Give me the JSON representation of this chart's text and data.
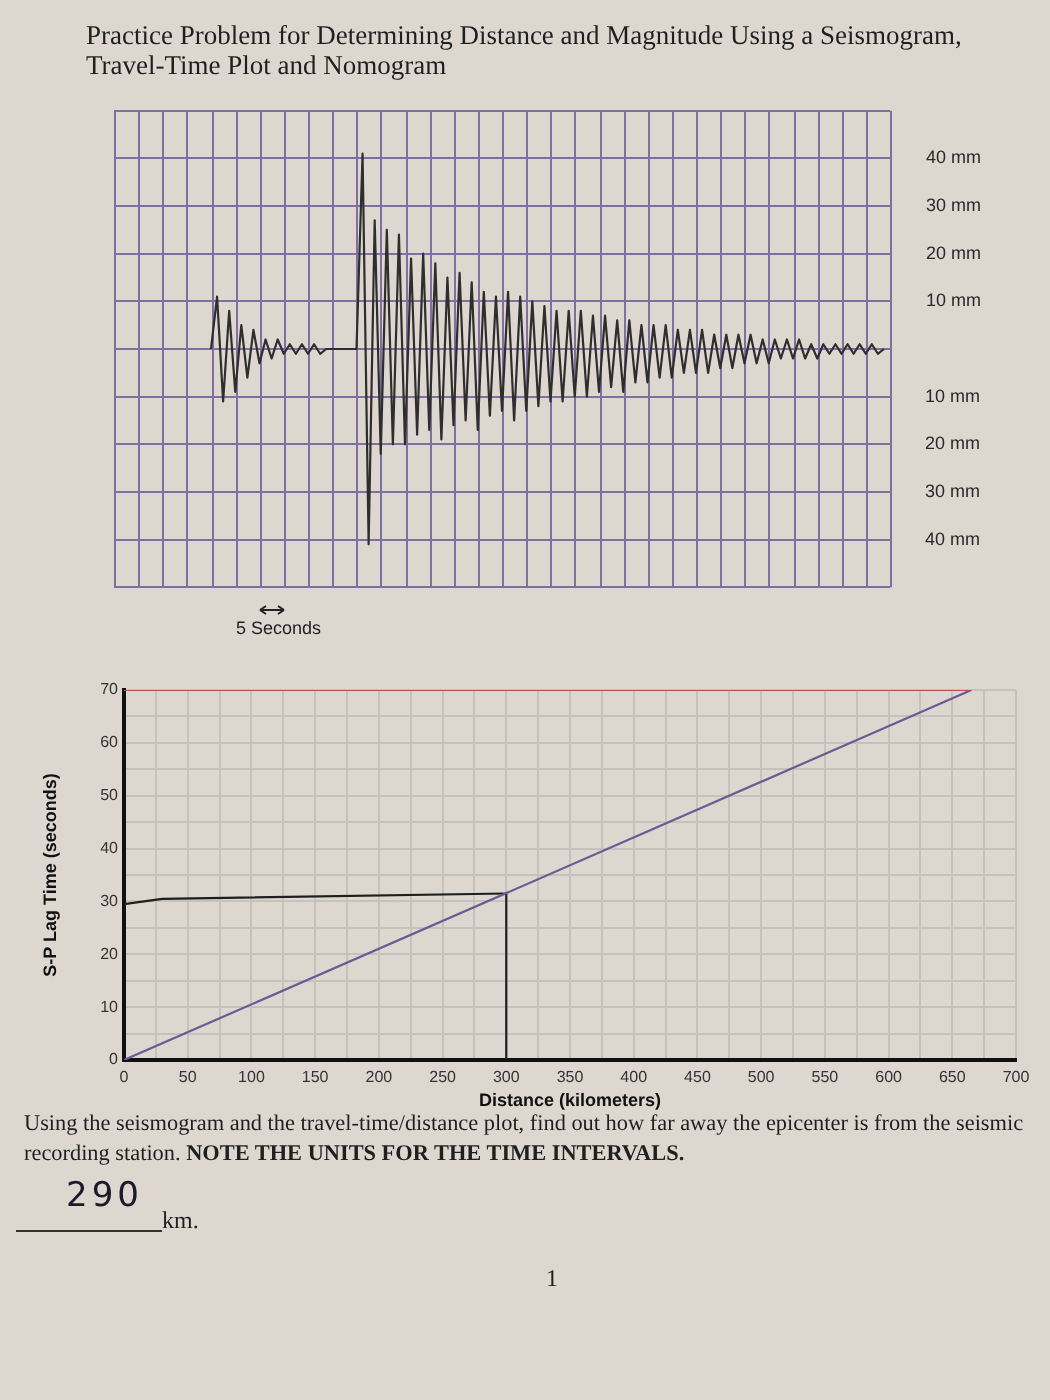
{
  "chart_data": [
    {
      "type": "line",
      "title": "Practice Problem for Determining Distance and Magnitude Using a Seismogram, Travel-Time Plot and Nomogram",
      "categories": [
        null,
        null,
        null,
        null,
        null,
        null,
        null,
        null,
        null,
        null,
        null,
        null,
        null,
        null,
        null,
        null,
        null,
        null,
        null,
        null,
        null,
        null,
        null,
        null,
        null,
        null,
        null,
        null,
        null,
        null,
        null,
        null,
        null,
        null,
        null,
        null,
        null,
        null,
        null,
        null,
        null,
        null,
        null,
        null,
        null,
        null,
        null,
        null,
        null,
        null,
        null,
        null,
        null,
        null,
        null,
        null,
        null,
        null,
        null,
        null,
        null,
        null,
        null,
        null,
        null,
        null,
        null,
        null,
        null,
        null,
        null,
        null,
        null,
        null,
        null,
        null,
        null,
        null,
        null,
        null,
        null,
        null,
        null,
        null,
        null,
        null,
        null,
        null,
        null,
        null,
        null,
        null,
        null,
        null,
        null,
        null,
        null,
        null,
        null,
        null,
        null,
        null,
        null,
        null,
        null,
        null,
        null,
        null,
        null,
        null,
        null,
        null,
        null,
        null,
        null,
        null,
        null,
        null,
        null,
        null,
        null,
        null,
        null,
        null,
        null,
        null,
        null,
        null,
        null
      ],
      "series": [
        {
          "type": "line",
          "color": "#2e2e2e",
          "values": [
            null,
            null,
            null,
            null,
            null,
            null,
            null,
            null,
            null,
            null,
            null,
            null,
            null,
            null,
            null,
            null,
            0,
            11,
            -11,
            8,
            -9,
            5,
            -6,
            4,
            -3,
            2,
            -2,
            2,
            -1,
            1,
            -1,
            1,
            -1,
            1,
            -1,
            0,
            0,
            0,
            0,
            0,
            0,
            41,
            -41,
            27,
            -22,
            25,
            -20,
            24,
            -20,
            19,
            -18,
            20,
            -17,
            18,
            -19,
            15,
            -16,
            16,
            -15,
            14,
            -17,
            12,
            -14,
            11,
            -13,
            12,
            -15,
            11,
            -13,
            10,
            -12,
            9,
            -11,
            8,
            -11,
            8,
            -10,
            8,
            -10,
            7,
            -9,
            7,
            -8,
            6,
            -9,
            6,
            -7,
            5,
            -7,
            5,
            -6,
            5,
            -6,
            4,
            -5,
            4,
            -5,
            4,
            -5,
            3,
            -4,
            3,
            -4,
            3,
            -3,
            3,
            -3,
            2,
            -3,
            2,
            -2,
            2,
            -2,
            2,
            -2,
            1,
            -2,
            1,
            -1,
            1,
            -1,
            1,
            -1,
            1,
            -1,
            1,
            -1,
            0,
            null
          ]
        }
      ],
      "ylim": [
        -50,
        50
      ],
      "yticks": [
        {
          "value": -50,
          "label": null
        },
        {
          "value": -40,
          "label": null
        },
        {
          "value": -30,
          "label": null
        },
        {
          "value": -20,
          "label": null
        },
        {
          "value": -10,
          "label": null
        },
        {
          "value": 0,
          "label": null
        },
        {
          "value": 10,
          "label": "10 mm"
        },
        {
          "value": 20,
          "label": "20 mm"
        },
        {
          "value": 30,
          "label": "30 mm"
        },
        {
          "value": 40,
          "label": "40 mm"
        },
        {
          "value": 50,
          "label": null
        }
      ],
      "y2lim": [
        50,
        -50
      ],
      "y2ticks": [
        {
          "value": 10,
          "label": "10 mm"
        },
        {
          "value": 20,
          "label": "20 mm"
        },
        {
          "value": 30,
          "label": "30 mm"
        },
        {
          "value": 40,
          "label": "40 mm"
        }
      ],
      "tick_labels": "y",
      "grid": true,
      "marker": "none",
      "annotations": [
        "5 Seconds"
      ]
    },
    {
      "type": "line",
      "xlabel": "Distance (kilometers)",
      "ylabel": "S-P Lag Time (seconds)",
      "series": [
        {
          "type": "line",
          "color": "#c0504d",
          "x": [
            0,
            665
          ],
          "values": [
            70,
            70
          ]
        },
        {
          "type": "line",
          "color": "#6b5b95",
          "x": [
            0,
            665
          ],
          "values": [
            0,
            70
          ]
        },
        {
          "type": "line",
          "color": "#1e1e1e",
          "x": [
            0,
            30,
            300
          ],
          "values": [
            29.5,
            30.5,
            31.5
          ]
        },
        {
          "type": "line",
          "color": "#1e1e1e",
          "x": [
            300,
            300
          ],
          "values": [
            0,
            31.5
          ]
        }
      ],
      "xlim": [
        0,
        700
      ],
      "xticks": [
        0,
        {
          "value": 25,
          "label": null
        },
        50,
        {
          "value": 75,
          "label": null
        },
        100,
        {
          "value": 125,
          "label": null
        },
        150,
        {
          "value": 175,
          "label": null
        },
        200,
        {
          "value": 225,
          "label": null
        },
        250,
        {
          "value": 275,
          "label": null
        },
        300,
        {
          "value": 325,
          "label": null
        },
        350,
        {
          "value": 375,
          "label": null
        },
        400,
        {
          "value": 425,
          "label": null
        },
        450,
        {
          "value": 475,
          "label": null
        },
        500,
        {
          "value": 525,
          "label": null
        },
        550,
        {
          "value": 575,
          "label": null
        },
        600,
        {
          "value": 625,
          "label": null
        },
        650,
        {
          "value": 675,
          "label": null
        },
        700
      ],
      "ylim": [
        0,
        70
      ],
      "yticks": [
        0,
        {
          "value": 5,
          "label": null
        },
        10,
        {
          "value": 15,
          "label": null
        },
        20,
        {
          "value": 25,
          "label": null
        },
        30,
        {
          "value": 35,
          "label": null
        },
        40,
        {
          "value": 45,
          "label": null
        },
        50,
        {
          "value": 55,
          "label": null
        },
        60,
        {
          "value": 65,
          "label": null
        },
        70
      ],
      "grid": true,
      "marker": "none",
      "annotations": [
        "Using the seismogram and the travel-time/distance plot, find out how far away the epicenter is from the seismic",
        "recording station.",
        "NOTE THE UNITS FOR THE TIME INTERVALS.",
        "290",
        "km.",
        "1"
      ]
    }
  ]
}
